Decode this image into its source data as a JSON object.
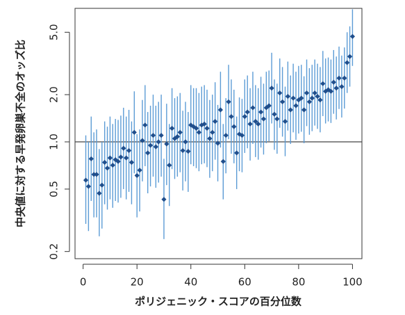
{
  "chart_data": {
    "type": "errorbar-scatter",
    "x_label": "ポリジェニック・スコアの百分位数",
    "y_label": "中央値に対する早発卵巣不全のオッズ比",
    "log_y": true,
    "xlim": [
      -3,
      103.5
    ],
    "ylim": [
      0.18,
      7.1
    ],
    "xticks": [
      0,
      20,
      40,
      60,
      80,
      100
    ],
    "yticks": [
      {
        "value": 5,
        "label": "5.0"
      },
      {
        "value": 2,
        "label": "2.0"
      },
      {
        "value": 1,
        "label": "1.0"
      },
      0.5,
      0.2
    ],
    "hline": 1,
    "color": "#1f4e8c",
    "error_color": "#5b9bd5",
    "x": [
      1,
      2,
      3,
      4,
      5,
      6,
      7,
      8,
      9,
      10,
      11,
      12,
      13,
      14,
      15,
      16,
      17,
      18,
      19,
      20,
      21,
      22,
      23,
      24,
      25,
      26,
      27,
      28,
      29,
      30,
      31,
      32,
      33,
      34,
      35,
      36,
      37,
      38,
      39,
      40,
      41,
      42,
      43,
      44,
      45,
      46,
      47,
      48,
      49,
      50,
      51,
      52,
      53,
      54,
      55,
      56,
      57,
      58,
      59,
      60,
      61,
      62,
      63,
      64,
      65,
      66,
      67,
      68,
      69,
      70,
      71,
      72,
      73,
      74,
      75,
      76,
      77,
      78,
      79,
      80,
      81,
      82,
      83,
      84,
      85,
      86,
      87,
      88,
      89,
      90,
      91,
      92,
      93,
      94,
      95,
      96,
      97,
      98,
      99,
      100
    ],
    "values": [
      0.57,
      0.52,
      0.78,
      0.62,
      0.62,
      0.47,
      0.53,
      0.74,
      0.68,
      0.79,
      0.71,
      0.77,
      0.75,
      0.8,
      0.91,
      0.79,
      0.88,
      0.74,
      1.15,
      0.61,
      0.66,
      1.02,
      1.28,
      0.85,
      0.95,
      1.1,
      0.93,
      1.0,
      1.1,
      0.43,
      0.97,
      0.71,
      1.22,
      1.05,
      1.08,
      1.15,
      0.88,
      1.0,
      0.87,
      1.28,
      1.25,
      1.22,
      1.15,
      1.28,
      1.3,
      1.22,
      1.05,
      1.15,
      1.35,
      0.98,
      1.6,
      0.75,
      1.1,
      1.8,
      1.45,
      1.25,
      0.85,
      1.12,
      1.1,
      1.45,
      1.55,
      1.3,
      1.65,
      1.35,
      1.3,
      1.55,
      1.4,
      1.65,
      1.7,
      2.2,
      1.5,
      1.4,
      2.05,
      1.8,
      1.35,
      1.95,
      1.6,
      1.9,
      1.7,
      1.85,
      1.9,
      1.6,
      2.05,
      1.8,
      1.9,
      2.05,
      1.95,
      1.85,
      2.35,
      2.1,
      2.15,
      2.1,
      2.4,
      2.2,
      2.55,
      2.25,
      2.55,
      3.2,
      3.5,
      4.7
    ],
    "lower": [
      0.3,
      0.27,
      0.42,
      0.33,
      0.33,
      0.25,
      0.28,
      0.4,
      0.37,
      0.43,
      0.38,
      0.42,
      0.41,
      0.44,
      0.5,
      0.43,
      0.48,
      0.4,
      0.63,
      0.33,
      0.36,
      0.56,
      0.7,
      0.47,
      0.52,
      0.6,
      0.51,
      0.55,
      0.6,
      0.24,
      0.53,
      0.39,
      0.67,
      0.58,
      0.6,
      0.64,
      0.49,
      0.56,
      0.48,
      0.72,
      0.7,
      0.68,
      0.65,
      0.72,
      0.73,
      0.69,
      0.59,
      0.65,
      0.77,
      0.56,
      0.92,
      0.43,
      0.63,
      1.04,
      0.84,
      0.73,
      0.5,
      0.65,
      0.64,
      0.85,
      0.91,
      0.76,
      0.97,
      0.8,
      0.77,
      0.92,
      0.83,
      0.98,
      1.01,
      1.31,
      0.89,
      0.84,
      1.23,
      1.08,
      0.81,
      1.18,
      0.97,
      1.15,
      1.03,
      1.13,
      1.16,
      0.98,
      1.26,
      1.11,
      1.17,
      1.27,
      1.21,
      1.15,
      1.46,
      1.31,
      1.35,
      1.32,
      1.51,
      1.39,
      1.62,
      1.43,
      1.63,
      2.05,
      2.25,
      3.05
    ],
    "upper": [
      1.1,
      1.0,
      1.45,
      1.15,
      1.2,
      0.9,
      1.0,
      1.35,
      1.25,
      1.45,
      1.3,
      1.4,
      1.38,
      1.47,
      1.65,
      1.45,
      1.6,
      1.35,
      2.1,
      1.12,
      1.2,
      1.85,
      2.3,
      1.55,
      1.7,
      2.0,
      1.7,
      1.8,
      2.0,
      0.78,
      1.75,
      1.3,
      2.2,
      1.9,
      1.95,
      2.05,
      1.58,
      1.8,
      1.55,
      2.3,
      2.2,
      2.2,
      2.05,
      2.25,
      2.3,
      2.15,
      1.85,
      2.0,
      2.4,
      1.72,
      2.8,
      1.3,
      1.9,
      3.1,
      2.5,
      2.15,
      1.45,
      1.92,
      1.88,
      2.5,
      2.65,
      2.2,
      2.8,
      2.3,
      2.2,
      2.6,
      2.35,
      2.8,
      2.85,
      3.7,
      2.5,
      2.35,
      3.4,
      3.0,
      2.25,
      3.25,
      2.65,
      3.15,
      2.8,
      3.05,
      3.1,
      2.62,
      3.35,
      2.95,
      3.1,
      3.35,
      3.15,
      3.0,
      3.8,
      3.4,
      3.45,
      3.35,
      3.85,
      3.5,
      4.05,
      3.55,
      4.0,
      5.0,
      5.45,
      7.0
    ]
  }
}
